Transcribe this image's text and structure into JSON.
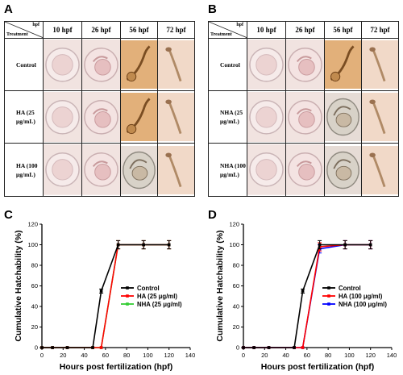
{
  "panels": {
    "A": {
      "letter": "A",
      "corner_hpf": "hpf",
      "corner_treatment": "Treatment",
      "columns": [
        "10 hpf",
        "26 hpf",
        "56 hpf",
        "72 hpf"
      ],
      "rows": [
        {
          "label": "Control"
        },
        {
          "label": "HA (25 μg/mL)"
        },
        {
          "label": "HA (100 μg/mL)"
        }
      ]
    },
    "B": {
      "letter": "B",
      "corner_hpf": "hpf",
      "corner_treatment": "Treatment",
      "columns": [
        "10 hpf",
        "26 hpf",
        "56 hpf",
        "72 hpf"
      ],
      "rows": [
        {
          "label": "Control"
        },
        {
          "label": "NHA (25 μg/mL)"
        },
        {
          "label": "NHA (100 μg/mL)"
        }
      ]
    },
    "C": {
      "letter": "C"
    },
    "D": {
      "letter": "D"
    }
  },
  "colors": {
    "control": "#000000",
    "ha": "#ff0000",
    "nha_c": "#33cc33",
    "nha_d": "#0000ff",
    "plate_bg": "#f1e3e0",
    "embryo_tan": "#e2b07a"
  },
  "chart_data": [
    {
      "type": "line",
      "panel": "C",
      "title": "",
      "xlabel": "Hours post fertilization (hpf)",
      "ylabel": "Cumulative Hatchability (%)",
      "xlim": [
        0,
        140
      ],
      "ylim": [
        0,
        120
      ],
      "xticks": [
        0,
        20,
        40,
        60,
        80,
        100,
        120,
        140
      ],
      "yticks": [
        0,
        20,
        40,
        60,
        80,
        100,
        120
      ],
      "legend_position": "bottom-right",
      "series": [
        {
          "name": "Control",
          "color": "#000000",
          "x": [
            0,
            10,
            24,
            48,
            56,
            72,
            96,
            120
          ],
          "y": [
            0,
            0,
            0,
            0,
            55,
            100,
            100,
            100
          ],
          "err": [
            0,
            0,
            0,
            0,
            2,
            4,
            4,
            4
          ]
        },
        {
          "name": "HA (25 μg/ml)",
          "color": "#ff0000",
          "x": [
            0,
            10,
            24,
            48,
            56,
            72,
            96,
            120
          ],
          "y": [
            0,
            0,
            0,
            0,
            0,
            100,
            100,
            100
          ],
          "err": [
            0,
            0,
            0,
            0,
            0,
            4,
            4,
            4
          ]
        },
        {
          "name": "NHA (25 μg/ml)",
          "color": "#33cc33",
          "x": [
            0,
            10,
            24,
            48,
            56,
            72,
            96,
            120
          ],
          "y": [
            0,
            0,
            0,
            0,
            0,
            100,
            100,
            100
          ],
          "err": [
            0,
            0,
            0,
            0,
            0,
            4,
            4,
            4
          ]
        }
      ]
    },
    {
      "type": "line",
      "panel": "D",
      "title": "",
      "xlabel": "Hours post fertilization (hpf)",
      "ylabel": "Cumulative Hatchability (%)",
      "xlim": [
        0,
        140
      ],
      "ylim": [
        0,
        120
      ],
      "xticks": [
        0,
        20,
        40,
        60,
        80,
        100,
        120,
        140
      ],
      "yticks": [
        0,
        20,
        40,
        60,
        80,
        100,
        120
      ],
      "legend_position": "bottom-right",
      "series": [
        {
          "name": "Control",
          "color": "#000000",
          "x": [
            0,
            10,
            24,
            48,
            56,
            72,
            96,
            120
          ],
          "y": [
            0,
            0,
            0,
            0,
            55,
            100,
            100,
            100
          ],
          "err": [
            0,
            0,
            0,
            0,
            2,
            4,
            4,
            4
          ]
        },
        {
          "name": "HA (100 μg/ml)",
          "color": "#ff0000",
          "x": [
            0,
            10,
            24,
            48,
            56,
            72,
            96,
            120
          ],
          "y": [
            0,
            0,
            0,
            0,
            0,
            98,
            100,
            100
          ],
          "err": [
            0,
            0,
            0,
            0,
            0,
            4,
            4,
            4
          ]
        },
        {
          "name": "NHA (100 μg/ml)",
          "color": "#0000ff",
          "x": [
            0,
            10,
            24,
            48,
            56,
            72,
            96,
            120
          ],
          "y": [
            0,
            0,
            0,
            0,
            0,
            96,
            100,
            100
          ],
          "err": [
            0,
            0,
            0,
            0,
            0,
            4,
            4,
            4
          ]
        }
      ]
    }
  ]
}
